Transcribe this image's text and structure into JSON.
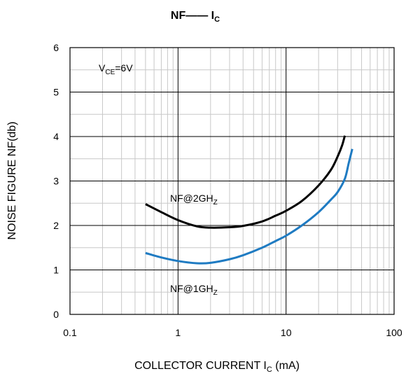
{
  "chart_data": {
    "type": "line",
    "title": "NF—— I",
    "title_sub": "C",
    "xlabel": "COLLECTOR CURRENT I",
    "xlabel_sub": "C",
    "xlabel_unit": " (mA)",
    "ylabel": "NOISE FIGURE NF(db)",
    "x_scale": "log",
    "xlim": [
      0.1,
      100
    ],
    "ylim": [
      0,
      6
    ],
    "x_ticks": [
      "0.1",
      "1",
      "10",
      "100"
    ],
    "y_ticks": [
      "0",
      "1",
      "2",
      "3",
      "4",
      "5",
      "6"
    ],
    "grid": true,
    "annotations": {
      "vce": {
        "main": "V",
        "sub": "CE",
        "rest": "=6V"
      },
      "nf2": {
        "main": "NF@2GH",
        "sub": "Z"
      },
      "nf1": {
        "main": "NF@1GH",
        "sub": "Z"
      }
    },
    "series": [
      {
        "key": "nf2",
        "color": "#000000",
        "x": [
          0.5,
          0.7,
          1.0,
          1.5,
          2.0,
          3.0,
          4.0,
          6.0,
          8.0,
          10,
          14,
          20,
          26,
          30,
          33,
          35
        ],
        "y": [
          2.48,
          2.3,
          2.12,
          1.98,
          1.95,
          1.96,
          1.99,
          2.09,
          2.22,
          2.33,
          2.55,
          2.9,
          3.25,
          3.55,
          3.8,
          4.02
        ]
      },
      {
        "key": "nf1",
        "color": "#1f7bc2",
        "x": [
          0.5,
          0.7,
          1.0,
          1.5,
          2.0,
          3.0,
          4.0,
          6.0,
          8.0,
          10,
          14,
          20,
          26,
          30,
          35,
          38,
          41
        ],
        "y": [
          1.38,
          1.28,
          1.2,
          1.15,
          1.16,
          1.24,
          1.33,
          1.5,
          1.65,
          1.77,
          2.0,
          2.3,
          2.58,
          2.75,
          3.05,
          3.4,
          3.72
        ]
      }
    ]
  }
}
